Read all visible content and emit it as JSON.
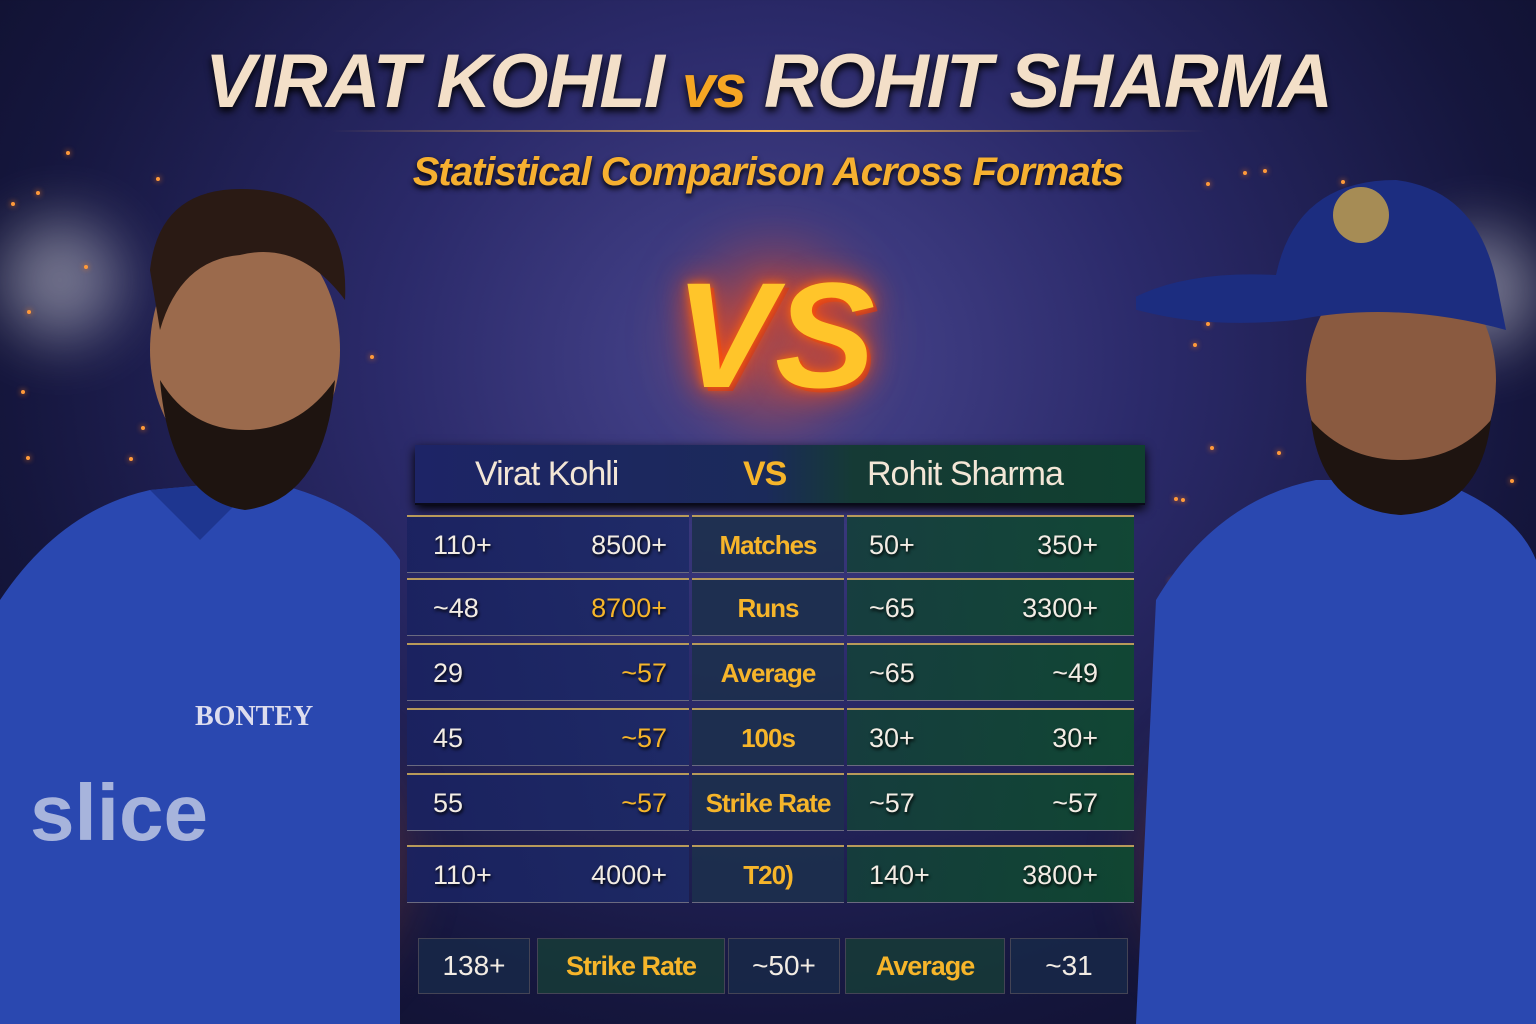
{
  "title": {
    "left": "VIRAT KOHLI",
    "vs": "vs",
    "right": "ROHIT SHARMA"
  },
  "subtitle": "Statistical Comparison Across Formats",
  "vs_graphic": "VS",
  "colors": {
    "accent": "#f6b52a",
    "kohli_side": "#1d2466",
    "rohit_side": "#10402f"
  },
  "table": {
    "header": {
      "left": "Virat Kohli",
      "mid": "VS",
      "right": "Rohit Sharma"
    },
    "rows": [
      {
        "label": "Matches",
        "k1": "110+",
        "k2": "8500+",
        "r1": "50+",
        "r2": "350+",
        "k2_highlight": false
      },
      {
        "label": "Runs",
        "k1": "~48",
        "k2": "8700+",
        "r1": "~65",
        "r2": "3300+",
        "k2_highlight": true
      },
      {
        "label": "Average",
        "k1": "29",
        "k2": "~57",
        "r1": "~65",
        "r2": "~49",
        "k2_highlight": true
      },
      {
        "label": "100s",
        "k1": "45",
        "k2": "~57",
        "r1": "30+",
        "r2": "30+",
        "k2_highlight": true
      },
      {
        "label": "Strike Rate",
        "k1": "55",
        "k2": "~57",
        "r1": "~57",
        "r2": "~57",
        "k2_highlight": true
      },
      {
        "label": "T20)",
        "k1": "110+",
        "k2": "4000+",
        "r1": "140+",
        "r2": "3800+",
        "k2_highlight": false
      }
    ],
    "bottom": [
      "138+",
      "Strike Rate",
      "~50+",
      "Average",
      "~31"
    ]
  },
  "jersey": {
    "left_sponsor": "slice",
    "left_text": "BONTEY"
  }
}
